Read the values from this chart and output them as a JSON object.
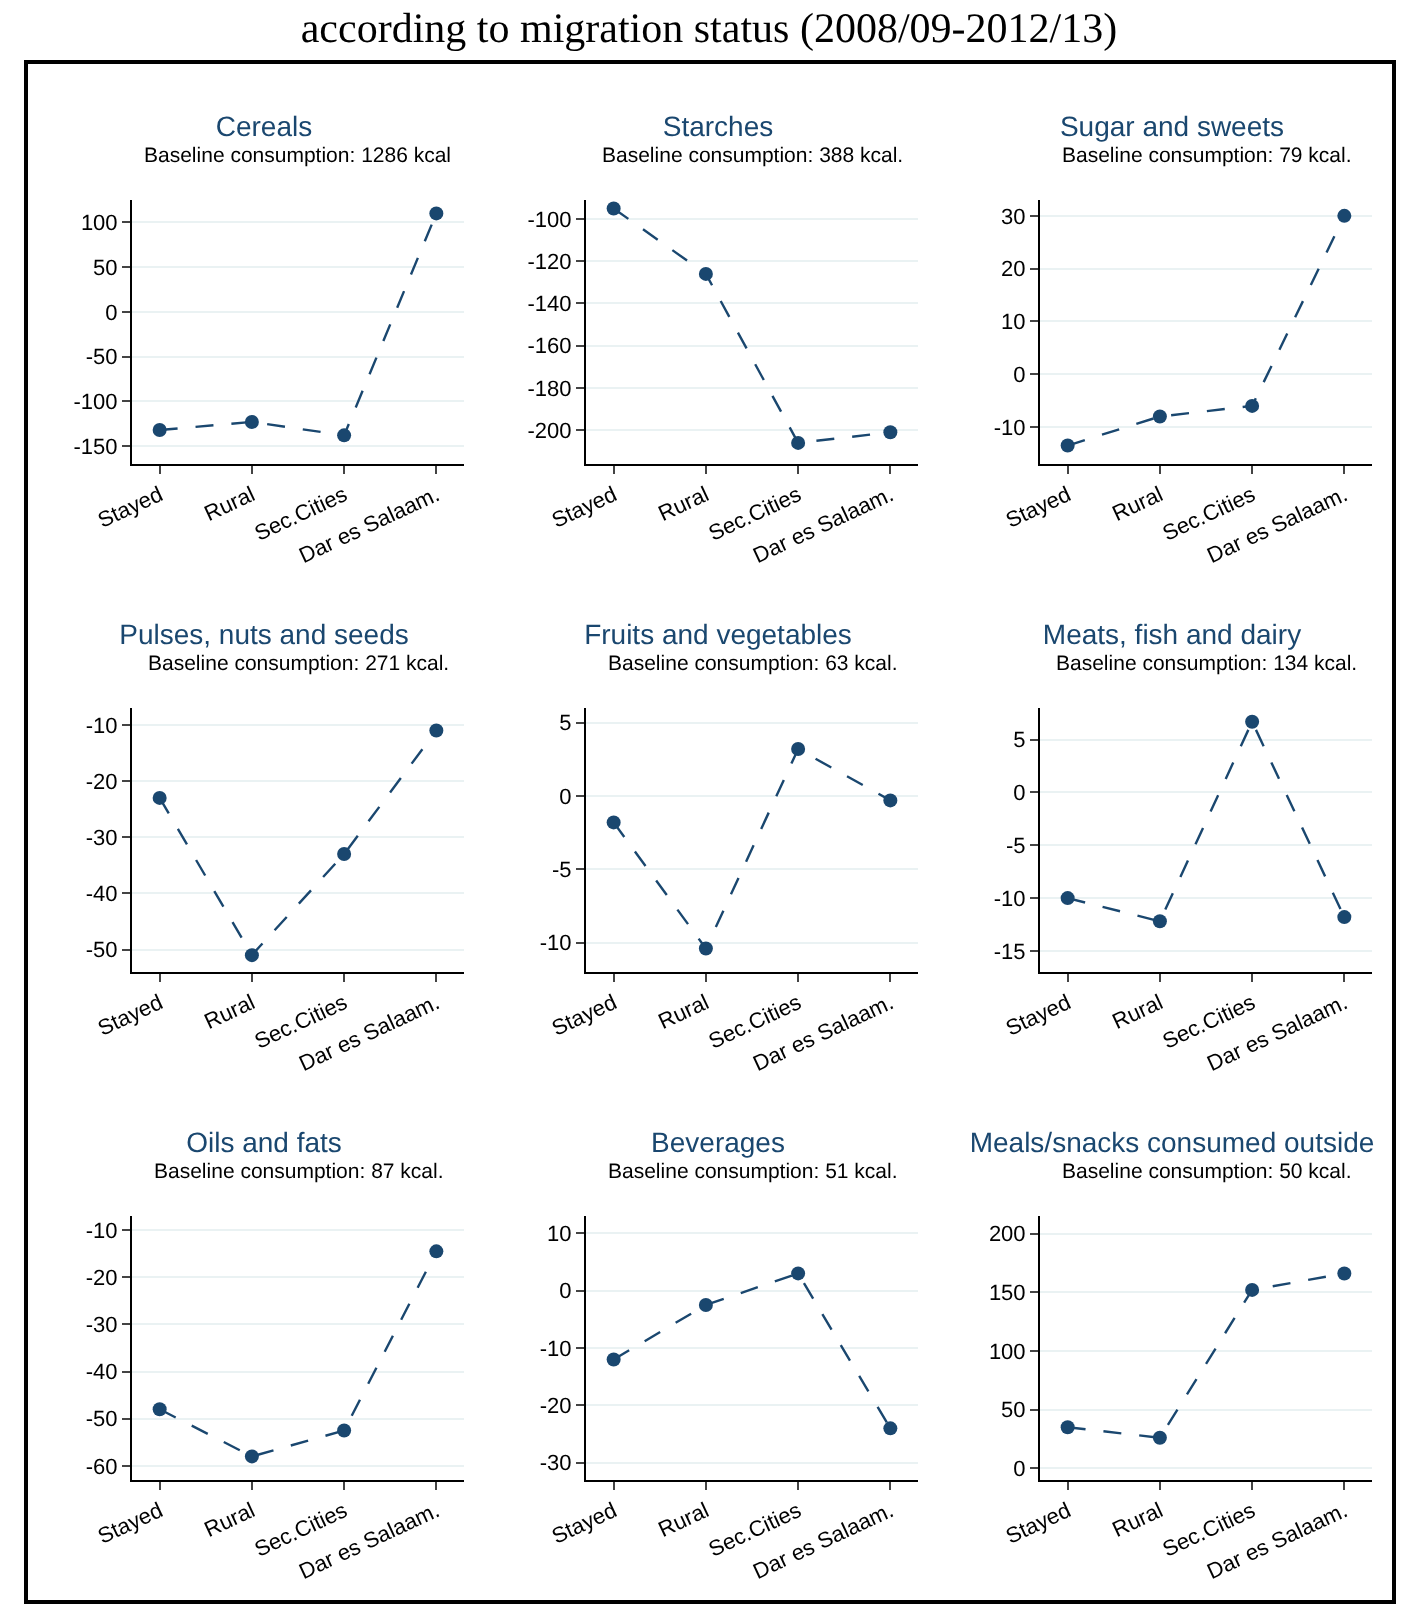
{
  "chart_data": [
    {
      "type": "other",
      "title": "according to migration status (2008/09-2012/13)"
    },
    {
      "type": "line",
      "title": "Cereals",
      "subtitle": "Baseline consumption: 1286 kcal",
      "categories": [
        "Stayed",
        "Rural",
        "Sec.Cities",
        "Dar es Salaam."
      ],
      "series": [
        {
          "color": "#1a476f",
          "values": [
            -132,
            -123,
            -138,
            110
          ]
        }
      ],
      "ylim": [
        -170,
        125
      ],
      "yticks": [
        -150,
        -100,
        -50,
        0,
        50,
        100
      ],
      "grid": "y",
      "marker": "circle",
      "line_style": "dashed"
    },
    {
      "type": "line",
      "title": "Starches",
      "subtitle": "Baseline consumption: 388 kcal.",
      "categories": [
        "Stayed",
        "Rural",
        "Sec.Cities",
        "Dar es Salaam."
      ],
      "series": [
        {
          "color": "#1a476f",
          "values": [
            -95,
            -126,
            -206,
            -201
          ]
        }
      ],
      "ylim": [
        -216,
        -91
      ],
      "yticks": [
        -200,
        -180,
        -160,
        -140,
        -120,
        -100
      ],
      "grid": "y",
      "marker": "circle",
      "line_style": "dashed"
    },
    {
      "type": "line",
      "title": "Sugar and sweets",
      "subtitle": "Baseline consumption: 79 kcal.",
      "categories": [
        "Stayed",
        "Rural",
        "Sec.Cities",
        "Dar es Salaam."
      ],
      "series": [
        {
          "color": "#1a476f",
          "values": [
            -13.5,
            -8,
            -6,
            30
          ]
        }
      ],
      "ylim": [
        -17,
        33
      ],
      "yticks": [
        -10,
        0,
        10,
        20,
        30
      ],
      "grid": "y",
      "marker": "circle",
      "line_style": "dashed"
    },
    {
      "type": "line",
      "title": "Pulses, nuts and seeds",
      "subtitle": "Baseline consumption: 271 kcal.",
      "categories": [
        "Stayed",
        "Rural",
        "Sec.Cities",
        "Dar es Salaam."
      ],
      "series": [
        {
          "color": "#1a476f",
          "values": [
            -23,
            -51,
            -33,
            -11
          ]
        }
      ],
      "ylim": [
        -54,
        -7
      ],
      "yticks": [
        -50,
        -40,
        -30,
        -20,
        -10
      ],
      "grid": "y",
      "marker": "circle",
      "line_style": "dashed"
    },
    {
      "type": "line",
      "title": "Fruits and vegetables",
      "subtitle": "Baseline consumption: 63 kcal.",
      "categories": [
        "Stayed",
        "Rural",
        "Sec.Cities",
        "Dar es Salaam."
      ],
      "series": [
        {
          "color": "#1a476f",
          "values": [
            -1.8,
            -10.4,
            3.2,
            -0.3
          ]
        }
      ],
      "ylim": [
        -12,
        6
      ],
      "yticks": [
        -10,
        -5,
        0,
        5
      ],
      "grid": "y",
      "marker": "circle",
      "line_style": "dashed"
    },
    {
      "type": "line",
      "title": "Meats, fish and dairy",
      "subtitle": "Baseline consumption: 134 kcal.",
      "categories": [
        "Stayed",
        "Rural",
        "Sec.Cities",
        "Dar es Salaam."
      ],
      "series": [
        {
          "color": "#1a476f",
          "values": [
            -10,
            -12.2,
            6.7,
            -11.8
          ]
        }
      ],
      "ylim": [
        -17,
        8
      ],
      "yticks": [
        -15,
        -10,
        -5,
        0,
        5
      ],
      "grid": "y",
      "marker": "circle",
      "line_style": "dashed"
    },
    {
      "type": "line",
      "title": "Oils and fats",
      "subtitle": "Baseline consumption: 87 kcal.",
      "categories": [
        "Stayed",
        "Rural",
        "Sec.Cities",
        "Dar es Salaam."
      ],
      "series": [
        {
          "color": "#1a476f",
          "values": [
            -48,
            -58,
            -52.5,
            -14.5
          ]
        }
      ],
      "ylim": [
        -63,
        -7
      ],
      "yticks": [
        -60,
        -50,
        -40,
        -30,
        -20,
        -10
      ],
      "grid": "y",
      "marker": "circle",
      "line_style": "dashed"
    },
    {
      "type": "line",
      "title": "Beverages",
      "subtitle": "Baseline consumption: 51 kcal.",
      "categories": [
        "Stayed",
        "Rural",
        "Sec.Cities",
        "Dar es Salaam."
      ],
      "series": [
        {
          "color": "#1a476f",
          "values": [
            -12,
            -2.5,
            3,
            -24
          ]
        }
      ],
      "ylim": [
        -33,
        13
      ],
      "yticks": [
        -30,
        -20,
        -10,
        0,
        10
      ],
      "grid": "y",
      "marker": "circle",
      "line_style": "dashed"
    },
    {
      "type": "line",
      "title": "Meals/snacks consumed outside",
      "subtitle": "Baseline consumption: 50 kcal.",
      "categories": [
        "Stayed",
        "Rural",
        "Sec.Cities",
        "Dar es Salaam."
      ],
      "series": [
        {
          "color": "#1a476f",
          "values": [
            35,
            26,
            152,
            166
          ]
        }
      ],
      "ylim": [
        -10,
        215
      ],
      "yticks": [
        0,
        50,
        100,
        150,
        200
      ],
      "grid": "y",
      "marker": "circle",
      "line_style": "dashed"
    }
  ]
}
